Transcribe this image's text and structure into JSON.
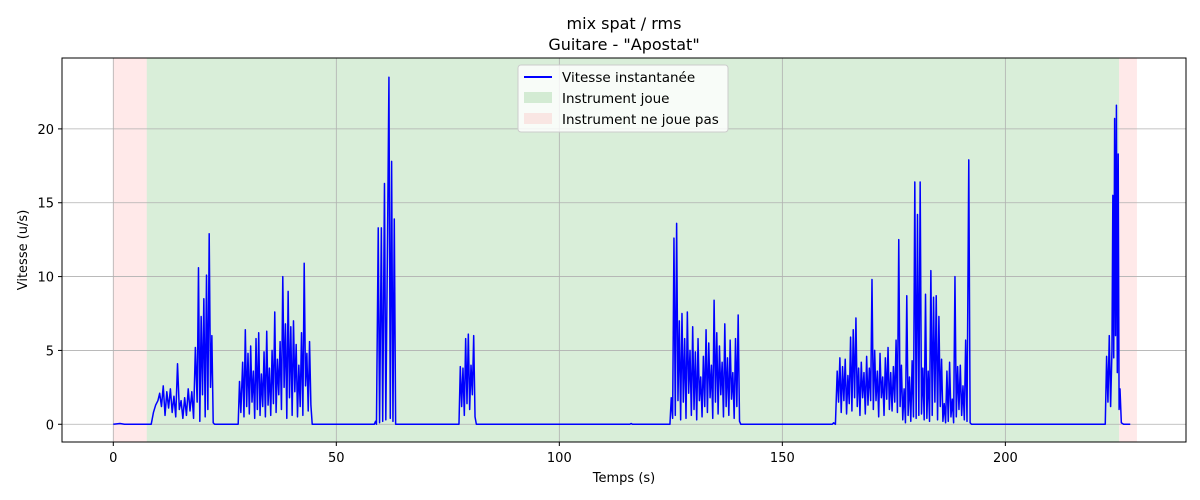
{
  "chart_data": {
    "type": "line",
    "title": "mix spat / rms",
    "subtitle": "Guitare - \"Apostat\"",
    "xlabel": "Temps (s)",
    "ylabel": "Vitesse (u/s)",
    "xlim": [
      -11.5,
      240.5
    ],
    "ylim": [
      -1.2,
      24.8
    ],
    "xticks": [
      0,
      50,
      100,
      150,
      200
    ],
    "yticks": [
      0,
      5,
      10,
      15,
      20
    ],
    "xtick_labels": [
      "0",
      "50",
      "100",
      "150",
      "200"
    ],
    "ytick_labels": [
      "0",
      "5",
      "10",
      "15",
      "20"
    ],
    "grid": true,
    "legend_position": "upper center",
    "colors": {
      "line": "#0000ff",
      "plays": "#2ca02c",
      "silent": "#ff9999"
    },
    "legend": [
      {
        "key": "line",
        "label": "Vitesse instantanée"
      },
      {
        "key": "plays",
        "label": "Instrument joue"
      },
      {
        "key": "silent",
        "label": "Instrument ne joue pas"
      }
    ],
    "regions": [
      {
        "kind": "silent",
        "start": 0,
        "end": 7.5
      },
      {
        "kind": "plays",
        "start": 7.5,
        "end": 225.5
      },
      {
        "kind": "silent",
        "start": 225.5,
        "end": 229.5
      }
    ],
    "series": [
      {
        "name": "Vitesse instantanée",
        "points": [
          [
            0,
            0
          ],
          [
            1.5,
            0.05
          ],
          [
            2.5,
            0
          ],
          [
            7.5,
            0
          ],
          [
            8.5,
            0
          ],
          [
            9,
            0.8
          ],
          [
            9.5,
            1.3
          ],
          [
            10,
            1.6
          ],
          [
            10.4,
            2.1
          ],
          [
            10.8,
            1.2
          ],
          [
            11.2,
            2.6
          ],
          [
            11.6,
            0.6
          ],
          [
            12,
            2.2
          ],
          [
            12.4,
            1.1
          ],
          [
            12.8,
            2.4
          ],
          [
            13.2,
            0.8
          ],
          [
            13.6,
            1.9
          ],
          [
            14,
            0.5
          ],
          [
            14.4,
            4.1
          ],
          [
            14.8,
            1.0
          ],
          [
            15.2,
            1.6
          ],
          [
            15.6,
            0.4
          ],
          [
            16,
            1.8
          ],
          [
            16.4,
            0.6
          ],
          [
            16.8,
            2.4
          ],
          [
            17.2,
            0.9
          ],
          [
            17.6,
            2.2
          ],
          [
            18,
            0.4
          ],
          [
            18.4,
            5.2
          ],
          [
            18.8,
            1.5
          ],
          [
            19.1,
            10.6
          ],
          [
            19.4,
            0.2
          ],
          [
            19.7,
            7.3
          ],
          [
            20,
            2.0
          ],
          [
            20.3,
            8.5
          ],
          [
            20.6,
            0.5
          ],
          [
            20.9,
            10.1
          ],
          [
            21.2,
            1.0
          ],
          [
            21.5,
            12.9
          ],
          [
            21.8,
            2.5
          ],
          [
            22.1,
            6.0
          ],
          [
            22.4,
            0.1
          ],
          [
            22.7,
            0
          ],
          [
            28,
            0
          ],
          [
            28.3,
            2.9
          ],
          [
            28.6,
            0.8
          ],
          [
            29,
            4.2
          ],
          [
            29.3,
            0.5
          ],
          [
            29.6,
            6.4
          ],
          [
            29.9,
            1.2
          ],
          [
            30.2,
            4.8
          ],
          [
            30.5,
            0.7
          ],
          [
            30.8,
            5.3
          ],
          [
            31.1,
            1.5
          ],
          [
            31.4,
            3.6
          ],
          [
            31.7,
            0.4
          ],
          [
            32,
            5.8
          ],
          [
            32.3,
            1.0
          ],
          [
            32.6,
            6.2
          ],
          [
            32.9,
            0.6
          ],
          [
            33.2,
            3.4
          ],
          [
            33.5,
            1.2
          ],
          [
            33.8,
            4.9
          ],
          [
            34.1,
            0.5
          ],
          [
            34.4,
            6.3
          ],
          [
            34.7,
            1.3
          ],
          [
            35,
            3.8
          ],
          [
            35.3,
            0.6
          ],
          [
            35.6,
            5.0
          ],
          [
            35.9,
            1.4
          ],
          [
            36.2,
            7.6
          ],
          [
            36.5,
            0.8
          ],
          [
            36.8,
            4.4
          ],
          [
            37.1,
            2.0
          ],
          [
            37.4,
            5.6
          ],
          [
            37.7,
            1.0
          ],
          [
            38,
            10.0
          ],
          [
            38.3,
            2.5
          ],
          [
            38.6,
            6.8
          ],
          [
            38.9,
            0.4
          ],
          [
            39.2,
            9.0
          ],
          [
            39.5,
            1.8
          ],
          [
            39.8,
            6.6
          ],
          [
            40.1,
            0.6
          ],
          [
            40.4,
            7.0
          ],
          [
            40.7,
            2.2
          ],
          [
            41,
            5.4
          ],
          [
            41.3,
            0.5
          ],
          [
            41.6,
            4.0
          ],
          [
            41.9,
            1.2
          ],
          [
            42.2,
            6.2
          ],
          [
            42.5,
            0.6
          ],
          [
            42.8,
            10.9
          ],
          [
            43.1,
            2.6
          ],
          [
            43.4,
            4.8
          ],
          [
            43.7,
            0.9
          ],
          [
            44,
            5.6
          ],
          [
            44.3,
            1.3
          ],
          [
            44.6,
            0
          ],
          [
            58.5,
            0
          ],
          [
            58.8,
            0.2
          ],
          [
            59,
            0
          ],
          [
            59.4,
            13.3
          ],
          [
            59.7,
            0.1
          ],
          [
            60.1,
            13.3
          ],
          [
            60.4,
            0.2
          ],
          [
            60.8,
            16.3
          ],
          [
            61.1,
            0.3
          ],
          [
            61.5,
            13.0
          ],
          [
            61.8,
            23.5
          ],
          [
            62.1,
            0.4
          ],
          [
            62.4,
            17.8
          ],
          [
            62.7,
            0.2
          ],
          [
            63,
            13.9
          ],
          [
            63.3,
            0
          ],
          [
            77.5,
            0
          ],
          [
            77.8,
            3.9
          ],
          [
            78.1,
            1.2
          ],
          [
            78.4,
            3.8
          ],
          [
            78.7,
            0.6
          ],
          [
            79,
            5.8
          ],
          [
            79.3,
            1.4
          ],
          [
            79.6,
            6.1
          ],
          [
            79.9,
            1.0
          ],
          [
            80.2,
            4.0
          ],
          [
            80.5,
            2.0
          ],
          [
            80.8,
            6.0
          ],
          [
            81.1,
            0.5
          ],
          [
            81.4,
            0
          ],
          [
            115.8,
            0
          ],
          [
            116.1,
            0.05
          ],
          [
            116.4,
            0
          ],
          [
            124.8,
            0
          ],
          [
            125.1,
            1.8
          ],
          [
            125.4,
            0.4
          ],
          [
            125.7,
            12.6
          ],
          [
            126,
            0.6
          ],
          [
            126.3,
            13.6
          ],
          [
            126.6,
            1.6
          ],
          [
            126.9,
            7.0
          ],
          [
            127.2,
            0.3
          ],
          [
            127.5,
            7.5
          ],
          [
            127.8,
            1.5
          ],
          [
            128.1,
            5.8
          ],
          [
            128.4,
            0.4
          ],
          [
            128.7,
            7.6
          ],
          [
            129,
            2.1
          ],
          [
            129.3,
            5.0
          ],
          [
            129.6,
            0.6
          ],
          [
            129.9,
            6.6
          ],
          [
            130.2,
            1.0
          ],
          [
            130.5,
            4.9
          ],
          [
            130.8,
            0.3
          ],
          [
            131.1,
            5.8
          ],
          [
            131.4,
            1.6
          ],
          [
            131.7,
            3.2
          ],
          [
            132,
            0.5
          ],
          [
            132.3,
            4.6
          ],
          [
            132.6,
            1.2
          ],
          [
            132.9,
            6.4
          ],
          [
            133.2,
            0.8
          ],
          [
            133.5,
            5.5
          ],
          [
            133.8,
            1.8
          ],
          [
            134.1,
            4.0
          ],
          [
            134.4,
            0.4
          ],
          [
            134.7,
            8.4
          ],
          [
            135,
            1.5
          ],
          [
            135.3,
            6.2
          ],
          [
            135.6,
            0.7
          ],
          [
            135.9,
            5.3
          ],
          [
            136.2,
            2.0
          ],
          [
            136.5,
            4.2
          ],
          [
            136.8,
            0.5
          ],
          [
            137.1,
            6.8
          ],
          [
            137.4,
            1.2
          ],
          [
            137.7,
            4.5
          ],
          [
            138,
            0.6
          ],
          [
            138.3,
            5.7
          ],
          [
            138.6,
            1.7
          ],
          [
            138.9,
            3.5
          ],
          [
            139.2,
            0.4
          ],
          [
            139.5,
            5.8
          ],
          [
            139.8,
            1.2
          ],
          [
            140.1,
            7.4
          ],
          [
            140.4,
            0.2
          ],
          [
            140.7,
            0
          ],
          [
            161.2,
            0
          ],
          [
            161.5,
            0.1
          ],
          [
            161.9,
            0
          ],
          [
            162.3,
            3.6
          ],
          [
            162.6,
            1.5
          ],
          [
            162.9,
            4.5
          ],
          [
            163.2,
            0.8
          ],
          [
            163.5,
            3.9
          ],
          [
            163.8,
            1.6
          ],
          [
            164.1,
            4.4
          ],
          [
            164.4,
            0.7
          ],
          [
            164.7,
            3.3
          ],
          [
            165,
            1.4
          ],
          [
            165.3,
            5.9
          ],
          [
            165.6,
            0.9
          ],
          [
            165.9,
            6.4
          ],
          [
            166.2,
            1.8
          ],
          [
            166.5,
            7.2
          ],
          [
            166.8,
            1.2
          ],
          [
            167.1,
            3.8
          ],
          [
            167.4,
            0.6
          ],
          [
            167.7,
            4.2
          ],
          [
            168,
            1.8
          ],
          [
            168.3,
            3.5
          ],
          [
            168.6,
            0.7
          ],
          [
            168.9,
            4.6
          ],
          [
            169.2,
            1.3
          ],
          [
            169.5,
            3.8
          ],
          [
            169.8,
            1.6
          ],
          [
            170.1,
            9.8
          ],
          [
            170.4,
            1.0
          ],
          [
            170.7,
            5.0
          ],
          [
            171,
            1.6
          ],
          [
            171.3,
            3.6
          ],
          [
            171.6,
            0.5
          ],
          [
            171.9,
            4.8
          ],
          [
            172.2,
            1.8
          ],
          [
            172.5,
            3.2
          ],
          [
            172.8,
            0.6
          ],
          [
            173.1,
            4.5
          ],
          [
            173.4,
            1.7
          ],
          [
            173.7,
            5.2
          ],
          [
            174,
            1.0
          ],
          [
            174.3,
            3.5
          ],
          [
            174.6,
            0.9
          ],
          [
            174.9,
            3.9
          ],
          [
            175.2,
            1.5
          ],
          [
            175.5,
            5.7
          ],
          [
            175.8,
            0.8
          ],
          [
            176.1,
            12.5
          ],
          [
            176.4,
            1.2
          ],
          [
            176.7,
            4.0
          ],
          [
            177,
            0.3
          ],
          [
            177.3,
            2.4
          ],
          [
            177.6,
            0.1
          ],
          [
            177.9,
            8.7
          ],
          [
            178.2,
            0.6
          ],
          [
            178.5,
            3.2
          ],
          [
            178.8,
            0.2
          ],
          [
            179.1,
            4.3
          ],
          [
            179.4,
            0.5
          ],
          [
            179.7,
            16.4
          ],
          [
            180,
            0.4
          ],
          [
            180.3,
            14.2
          ],
          [
            180.6,
            0.6
          ],
          [
            180.9,
            16.4
          ],
          [
            181.2,
            0.7
          ],
          [
            181.5,
            3.8
          ],
          [
            181.8,
            0.3
          ],
          [
            182.1,
            8.8
          ],
          [
            182.4,
            0.4
          ],
          [
            182.7,
            3.6
          ],
          [
            183,
            0.2
          ],
          [
            183.3,
            10.4
          ],
          [
            183.6,
            0.6
          ],
          [
            183.9,
            8.6
          ],
          [
            184.2,
            1.5
          ],
          [
            184.5,
            8.7
          ],
          [
            184.8,
            0.3
          ],
          [
            185.1,
            7.3
          ],
          [
            185.4,
            1.2
          ],
          [
            185.7,
            4.4
          ],
          [
            186,
            0.2
          ],
          [
            186.3,
            1.4
          ],
          [
            186.6,
            0.1
          ],
          [
            186.9,
            3.6
          ],
          [
            187.2,
            0.2
          ],
          [
            187.5,
            4.2
          ],
          [
            187.8,
            0.5
          ],
          [
            188.1,
            1.7
          ],
          [
            188.4,
            0.1
          ],
          [
            188.7,
            10.0
          ],
          [
            189,
            0.5
          ],
          [
            189.3,
            3.9
          ],
          [
            189.6,
            1.0
          ],
          [
            189.9,
            4.0
          ],
          [
            190.2,
            0.6
          ],
          [
            190.5,
            2.6
          ],
          [
            190.8,
            0.3
          ],
          [
            191.1,
            5.7
          ],
          [
            191.4,
            0.2
          ],
          [
            191.8,
            17.9
          ],
          [
            192.1,
            0.1
          ],
          [
            192.4,
            0
          ],
          [
            222.4,
            0
          ],
          [
            222.7,
            4.6
          ],
          [
            223,
            1.5
          ],
          [
            223.3,
            6.0
          ],
          [
            223.6,
            1.2
          ],
          [
            223.9,
            5.0
          ],
          [
            224.1,
            15.5
          ],
          [
            224.3,
            4.5
          ],
          [
            224.5,
            20.7
          ],
          [
            224.7,
            6.0
          ],
          [
            224.9,
            21.6
          ],
          [
            225.1,
            3.5
          ],
          [
            225.3,
            18.3
          ],
          [
            225.5,
            1.0
          ],
          [
            225.7,
            2.4
          ],
          [
            226,
            0.1
          ],
          [
            226.5,
            0
          ],
          [
            228,
            0
          ]
        ]
      }
    ]
  }
}
